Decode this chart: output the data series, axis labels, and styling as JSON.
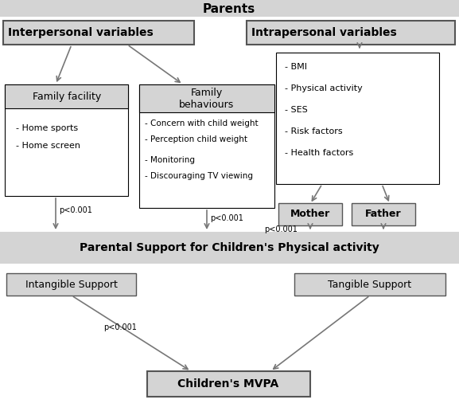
{
  "title": "Parents",
  "box_gray": "#d4d4d4",
  "white": "#ffffff",
  "arrow_color": "#777777",
  "black": "#000000",
  "edge_dark": "#555555",
  "interpersonal_label": "Interpersonal variables",
  "intrapersonal_label": "Intrapersonal variables",
  "family_facility_title": "Family facility",
  "family_facility_items": [
    "- Home sports",
    "- Home screen"
  ],
  "family_behaviours_title": "Family\nbehaviours",
  "family_behaviours_items": [
    "- Concern with child\n  weight",
    "- Perception child\n  weight",
    "- Monitoring",
    "- Discouraging TV\n  viewing"
  ],
  "intrapersonal_items": [
    "- BMI",
    "- Physical activity",
    "- SES",
    "- Risk factors",
    "- Health factors"
  ],
  "mother_label": "Mother",
  "father_label": "Father",
  "parental_support_label": "Parental Support for Children's Physical activity",
  "intangible_label": "Intangible Support",
  "tangible_label": "Tangible Support",
  "mvpa_label": "Children's MVPA",
  "p_label": "p<0.001"
}
